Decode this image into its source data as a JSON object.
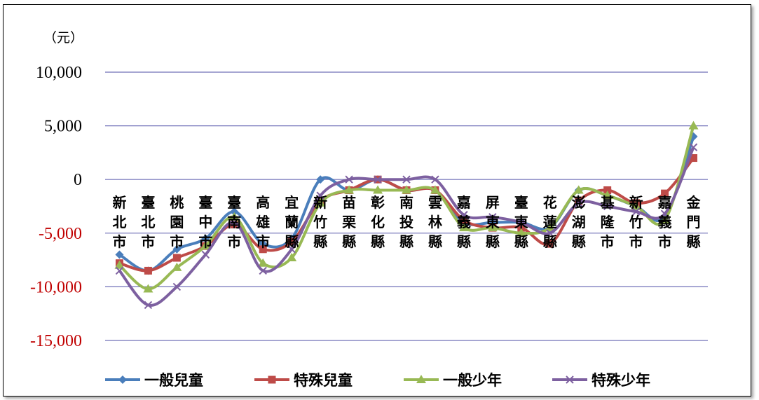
{
  "chart_data": {
    "type": "line",
    "unit_label": "（元）",
    "ylim": [
      -15000,
      10000
    ],
    "yticks": [
      {
        "value": 10000,
        "label": "10,000",
        "color": "#000000"
      },
      {
        "value": 5000,
        "label": "5,000",
        "color": "#000000"
      },
      {
        "value": 0,
        "label": "0",
        "color": "#000000"
      },
      {
        "value": -5000,
        "label": "-5,000",
        "color": "#c00000"
      },
      {
        "value": -10000,
        "label": "-10,000",
        "color": "#c00000"
      },
      {
        "value": -15000,
        "label": "-15,000",
        "color": "#c00000"
      }
    ],
    "grid": true,
    "legend_position": "bottom",
    "categories": [
      "新北市",
      "臺北市",
      "桃園市",
      "臺中市",
      "臺南市",
      "高雄市",
      "宜蘭縣",
      "新竹縣",
      "苗栗縣",
      "彰化縣",
      "南投縣",
      "雲林縣",
      "嘉義縣",
      "屏東縣",
      "臺東縣",
      "花蓮縣",
      "澎湖縣",
      "基隆市",
      "新竹市",
      "嘉義市",
      "金門縣"
    ],
    "series": [
      {
        "name": "一般兒童",
        "color": "#4a7ebb",
        "marker": "diamond",
        "values": [
          -7000,
          -8500,
          -6500,
          -5500,
          -3000,
          -6000,
          -5500,
          0,
          -1000,
          0,
          -1000,
          -1000,
          -4000,
          -4000,
          -4000,
          -4500,
          -1000,
          -1500,
          -2500,
          -3500,
          4000
        ]
      },
      {
        "name": "特殊兒童",
        "color": "#be4b48",
        "marker": "square",
        "values": [
          -7800,
          -8500,
          -7300,
          -6200,
          -4200,
          -6500,
          -5800,
          -2000,
          -1000,
          0,
          -1000,
          -1000,
          -3800,
          -4500,
          -4500,
          -6000,
          -2000,
          -1000,
          -2200,
          -1300,
          2000
        ]
      },
      {
        "name": "一般少年",
        "color": "#98b954",
        "marker": "triangle",
        "values": [
          -8000,
          -10200,
          -8200,
          -6200,
          -3500,
          -7800,
          -7300,
          -2200,
          -1000,
          -1000,
          -1000,
          -1000,
          -4500,
          -4500,
          -5000,
          -4500,
          -1000,
          -1500,
          -2500,
          -3800,
          5000
        ]
      },
      {
        "name": "特殊少年",
        "color": "#7d60a0",
        "marker": "x",
        "values": [
          -8500,
          -11700,
          -10000,
          -7000,
          -4000,
          -8500,
          -6500,
          -1500,
          0,
          0,
          0,
          0,
          -3300,
          -3500,
          -4000,
          -5000,
          -2200,
          -2500,
          -3000,
          -3200,
          3000
        ]
      }
    ]
  }
}
